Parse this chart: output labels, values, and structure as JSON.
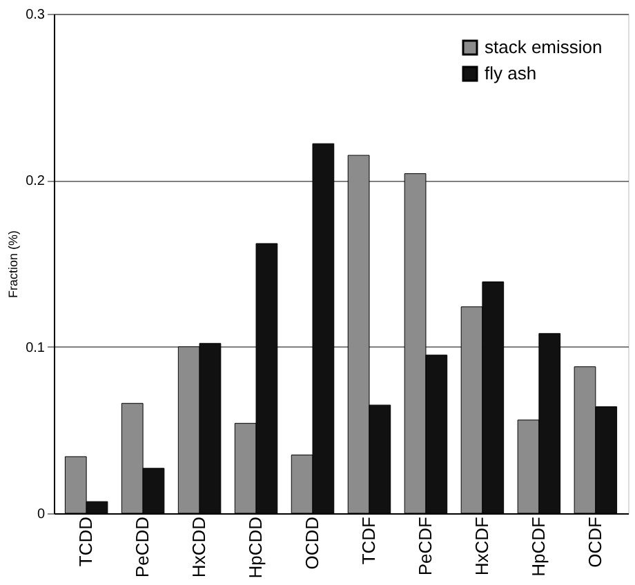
{
  "chart_data": {
    "type": "bar",
    "ylabel": "Fraction (%)",
    "categories": [
      "TCDD",
      "PeCDD",
      "HxCDD",
      "HpCDD",
      "OCDD",
      "TCDF",
      "PeCDF",
      "HxCDF",
      "HpCDF",
      "OCDF"
    ],
    "series": [
      {
        "name": "stack emission",
        "color": "#8c8c8c",
        "values": [
          0.034,
          0.066,
          0.1,
          0.054,
          0.035,
          0.215,
          0.204,
          0.124,
          0.056,
          0.088
        ]
      },
      {
        "name": "fly ash",
        "color": "#111111",
        "values": [
          0.007,
          0.027,
          0.102,
          0.162,
          0.222,
          0.065,
          0.095,
          0.139,
          0.108,
          0.064
        ]
      }
    ],
    "ylim": [
      0,
      0.3
    ],
    "yticks": [
      0,
      0.1,
      0.2,
      0.3
    ],
    "grid": "y",
    "legend": "top right"
  }
}
